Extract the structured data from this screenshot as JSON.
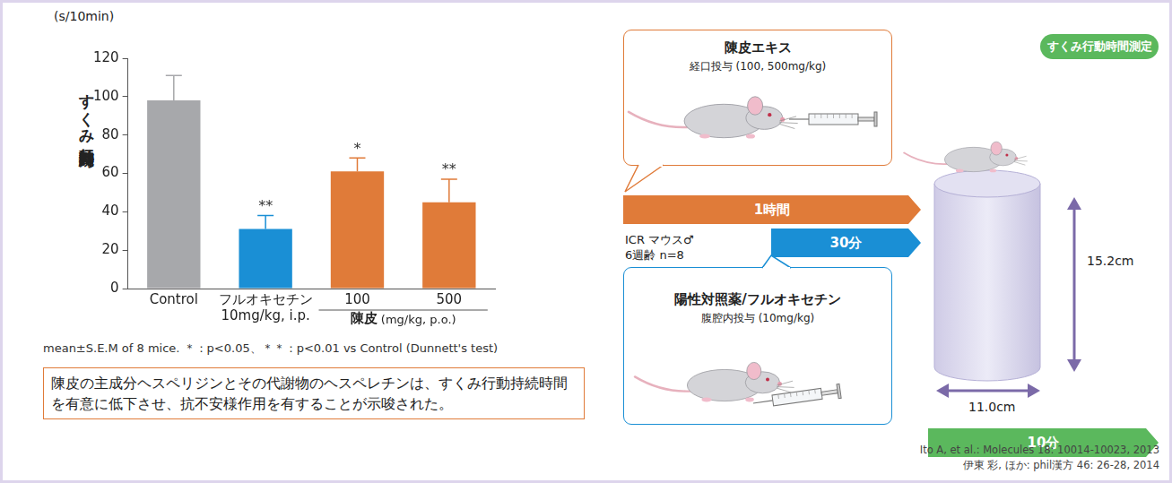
{
  "chart_data": {
    "type": "bar",
    "unit_label": "(s/10min)",
    "y_label": "すくみ行動持続時間",
    "categories": [
      "Control",
      "フルオキセチン 10mg/kg, i.p.",
      "100",
      "500"
    ],
    "values": [
      98,
      31,
      61,
      45
    ],
    "errors": [
      13,
      7,
      7,
      12
    ],
    "colors": [
      "#a7a8ab",
      "#1a8fd5",
      "#e07b39",
      "#e07b39"
    ],
    "significance": [
      null,
      "**",
      "*",
      "**"
    ],
    "group": {
      "label": "陳皮",
      "unit": "(mg/kg, p.o.)",
      "members": [
        "100",
        "500"
      ]
    },
    "ylim": [
      0,
      120
    ],
    "yticks": [
      0,
      20,
      40,
      60,
      80,
      100,
      120
    ],
    "grid": false,
    "footnote": "mean±S.E.M of 8 mice. ＊：p<0.05、＊＊：p<0.01 vs Control (Dunnett's test)",
    "conclusion": "陳皮の主成分ヘスペリジンとその代謝物のヘスペレチンは、すくみ行動持続時間を有意に低下させ、抗不安様作用を有することが示唆された。"
  },
  "diagram": {
    "oral": {
      "title": "陳皮エキス",
      "text": "経口投与 (100, 500mg/kg)"
    },
    "positive": {
      "title": "陽性対照薬/フルオキセチン",
      "text": "腹腔内投与 (10mg/kg)"
    },
    "animals": [
      "ICR マウス♂",
      "6週齢 n=8"
    ],
    "measure": "すくみ行動時間測定",
    "arrows": {
      "oral": "1時間",
      "positive": "30分",
      "test": "10分"
    },
    "height": "15.2cm",
    "diameter": "11.0cm"
  },
  "citations": [
    "Ito A, et al.: Molecules 18: 10014-10023, 2013",
    "伊東 彩, ほか: phil漢方 46: 26-28, 2014"
  ]
}
